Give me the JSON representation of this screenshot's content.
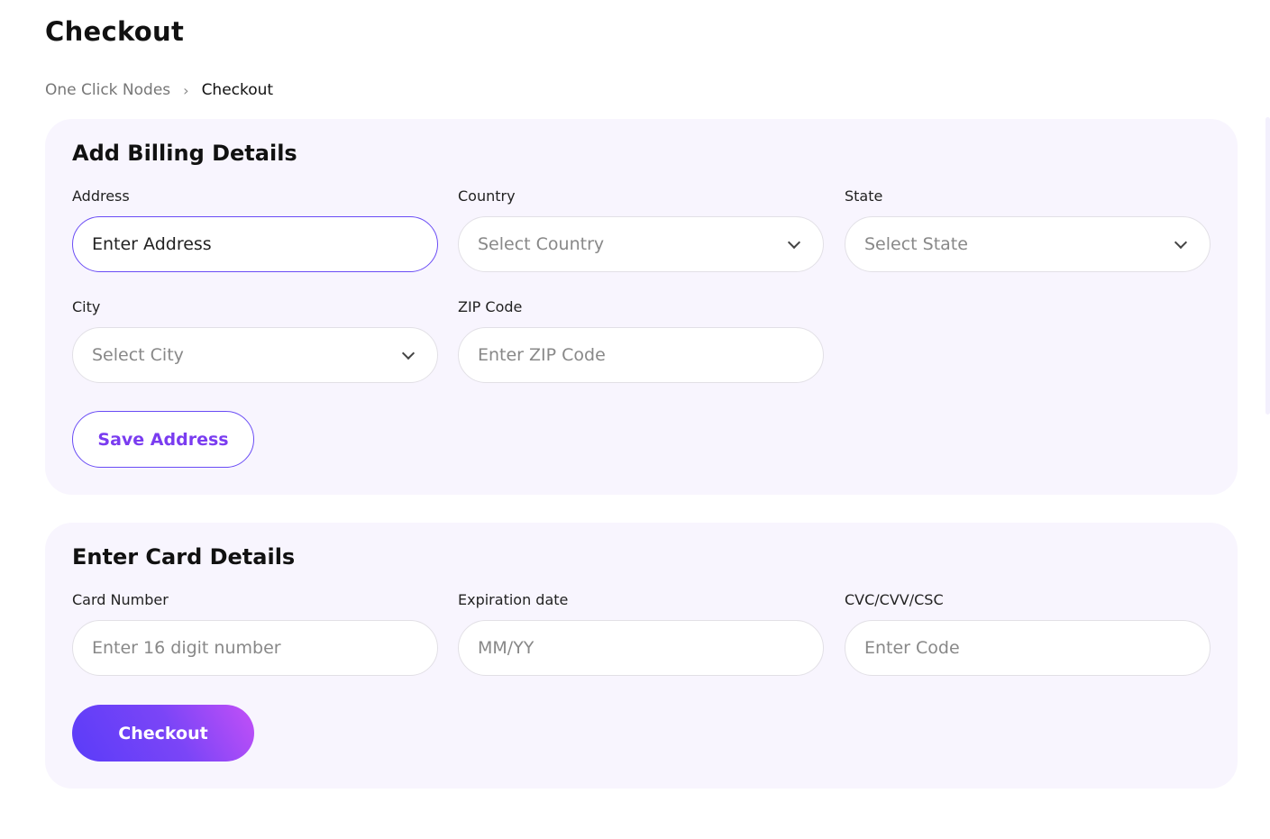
{
  "page": {
    "title": "Checkout"
  },
  "breadcrumb": [
    {
      "label": "One Click Nodes"
    },
    {
      "label": "Checkout"
    }
  ],
  "billing": {
    "heading": "Add Billing Details",
    "address": {
      "label": "Address",
      "placeholder": "Enter Address"
    },
    "country": {
      "label": "Country",
      "placeholder": "Select Country"
    },
    "state": {
      "label": "State",
      "placeholder": "Select State"
    },
    "city": {
      "label": "City",
      "placeholder": "Select City"
    },
    "zip": {
      "label": "ZIP Code",
      "placeholder": "Enter ZIP Code"
    },
    "save_label": "Save Address"
  },
  "card": {
    "heading": "Enter Card Details",
    "number": {
      "label": "Card Number",
      "placeholder": "Enter 16 digit number"
    },
    "expiry": {
      "label": "Expiration date",
      "placeholder": "MM/YY"
    },
    "cvc": {
      "label": "CVC/CVV/CSC",
      "placeholder": "Enter Code"
    },
    "checkout_label": "Checkout"
  },
  "colors": {
    "accent": "#6a4cf5",
    "card_bg": "#f8f5fe",
    "gradient_end": "#c350f7"
  }
}
